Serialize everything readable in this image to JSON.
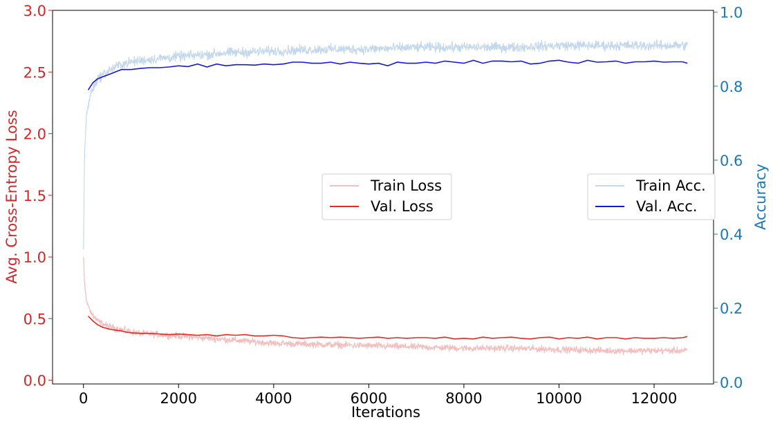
{
  "colors": {
    "left_axis": "#d62728",
    "right_axis": "#1f77b4",
    "train_loss": "#f4bcbc",
    "val_loss": "#e8281e",
    "train_acc": "#c3d8eb",
    "val_acc": "#1515e0"
  },
  "chart_data": {
    "type": "line",
    "xlabel": "Iterations",
    "ylabel_left": "Avg. Cross-Entropy Loss",
    "ylabel_right": "Accuracy",
    "xlim": [
      -650,
      13250
    ],
    "ylim_left": [
      -0.03,
      3.0
    ],
    "ylim_right": [
      -0.005,
      1.005
    ],
    "x_ticks": [
      0,
      2000,
      4000,
      6000,
      8000,
      10000,
      12000
    ],
    "y_left_ticks": [
      "0.0",
      "0.5",
      "1.0",
      "1.5",
      "2.0",
      "2.5",
      "3.0"
    ],
    "y_right_ticks": [
      "0.0",
      "0.2",
      "0.4",
      "0.6",
      "0.8",
      "1.0"
    ],
    "grid": false,
    "legends": [
      {
        "placement": "center",
        "entries": [
          "Train Loss",
          "Val. Loss"
        ]
      },
      {
        "placement": "center-right",
        "entries": [
          "Train Acc.",
          "Val. Acc."
        ]
      }
    ],
    "series": [
      {
        "name": "Train Loss",
        "axis": "left",
        "noise": 0.04,
        "points": [
          [
            0,
            1.0
          ],
          [
            20,
            0.8
          ],
          [
            60,
            0.65
          ],
          [
            150,
            0.55
          ],
          [
            300,
            0.48
          ],
          [
            500,
            0.44
          ],
          [
            800,
            0.41
          ],
          [
            1200,
            0.38
          ],
          [
            2000,
            0.36
          ],
          [
            3000,
            0.33
          ],
          [
            4000,
            0.3
          ],
          [
            5000,
            0.29
          ],
          [
            6000,
            0.28
          ],
          [
            7000,
            0.27
          ],
          [
            8000,
            0.26
          ],
          [
            9000,
            0.26
          ],
          [
            10000,
            0.25
          ],
          [
            11000,
            0.24
          ],
          [
            12000,
            0.24
          ],
          [
            12700,
            0.24
          ]
        ]
      },
      {
        "name": "Val. Loss",
        "axis": "left",
        "x": [
          100,
          200,
          300,
          400,
          500,
          600,
          700,
          800,
          900,
          1000,
          1200,
          1400,
          1600,
          1800,
          2000,
          2200,
          2400,
          2600,
          2800,
          3000,
          3200,
          3400,
          3600,
          3800,
          4000,
          4200,
          4400,
          4600,
          4800,
          5000,
          5200,
          5400,
          5600,
          5800,
          6000,
          6200,
          6400,
          6600,
          6800,
          7000,
          7200,
          7400,
          7600,
          7800,
          8000,
          8200,
          8400,
          8600,
          8800,
          9000,
          9200,
          9400,
          9600,
          9800,
          10000,
          10200,
          10400,
          10600,
          10800,
          11000,
          11200,
          11400,
          11600,
          11800,
          12000,
          12200,
          12400,
          12600,
          12700
        ],
        "values": [
          0.52,
          0.48,
          0.45,
          0.43,
          0.42,
          0.41,
          0.405,
          0.4,
          0.39,
          0.385,
          0.38,
          0.38,
          0.375,
          0.37,
          0.375,
          0.37,
          0.365,
          0.37,
          0.36,
          0.37,
          0.365,
          0.37,
          0.36,
          0.36,
          0.365,
          0.36,
          0.345,
          0.34,
          0.345,
          0.35,
          0.345,
          0.35,
          0.345,
          0.34,
          0.345,
          0.35,
          0.34,
          0.345,
          0.34,
          0.345,
          0.345,
          0.34,
          0.35,
          0.335,
          0.34,
          0.335,
          0.35,
          0.34,
          0.345,
          0.35,
          0.34,
          0.335,
          0.345,
          0.35,
          0.335,
          0.345,
          0.34,
          0.35,
          0.335,
          0.345,
          0.345,
          0.335,
          0.345,
          0.34,
          0.34,
          0.345,
          0.34,
          0.345,
          0.355
        ]
      },
      {
        "name": "Train Acc.",
        "axis": "right",
        "noise": 0.02,
        "points": [
          [
            0,
            0.35
          ],
          [
            20,
            0.6
          ],
          [
            60,
            0.72
          ],
          [
            150,
            0.78
          ],
          [
            300,
            0.82
          ],
          [
            500,
            0.84
          ],
          [
            800,
            0.86
          ],
          [
            1200,
            0.87
          ],
          [
            2000,
            0.88
          ],
          [
            3000,
            0.89
          ],
          [
            4000,
            0.895
          ],
          [
            5000,
            0.9
          ],
          [
            6000,
            0.9
          ],
          [
            7000,
            0.905
          ],
          [
            8000,
            0.905
          ],
          [
            9000,
            0.905
          ],
          [
            10000,
            0.91
          ],
          [
            11000,
            0.91
          ],
          [
            12000,
            0.91
          ],
          [
            12700,
            0.91
          ]
        ]
      },
      {
        "name": "Val. Acc.",
        "axis": "right",
        "x": [
          100,
          200,
          300,
          400,
          500,
          600,
          700,
          800,
          900,
          1000,
          1200,
          1400,
          1600,
          1800,
          2000,
          2200,
          2400,
          2600,
          2800,
          3000,
          3200,
          3400,
          3600,
          3800,
          4000,
          4200,
          4400,
          4600,
          4800,
          5000,
          5200,
          5400,
          5600,
          5800,
          6000,
          6200,
          6400,
          6600,
          6800,
          7000,
          7200,
          7400,
          7600,
          7800,
          8000,
          8200,
          8400,
          8600,
          8800,
          9000,
          9200,
          9400,
          9600,
          9800,
          10000,
          10200,
          10400,
          10600,
          10800,
          11000,
          11200,
          11400,
          11600,
          11800,
          12000,
          12200,
          12400,
          12600,
          12700
        ],
        "values": [
          0.79,
          0.81,
          0.82,
          0.825,
          0.83,
          0.835,
          0.84,
          0.845,
          0.845,
          0.845,
          0.848,
          0.85,
          0.85,
          0.852,
          0.855,
          0.853,
          0.86,
          0.852,
          0.86,
          0.855,
          0.858,
          0.858,
          0.857,
          0.86,
          0.858,
          0.86,
          0.865,
          0.865,
          0.862,
          0.862,
          0.865,
          0.86,
          0.865,
          0.862,
          0.86,
          0.862,
          0.855,
          0.865,
          0.862,
          0.862,
          0.865,
          0.862,
          0.868,
          0.865,
          0.862,
          0.87,
          0.862,
          0.868,
          0.868,
          0.866,
          0.868,
          0.86,
          0.862,
          0.868,
          0.87,
          0.865,
          0.862,
          0.87,
          0.865,
          0.866,
          0.868,
          0.862,
          0.866,
          0.866,
          0.868,
          0.865,
          0.866,
          0.866,
          0.862
        ]
      }
    ]
  }
}
